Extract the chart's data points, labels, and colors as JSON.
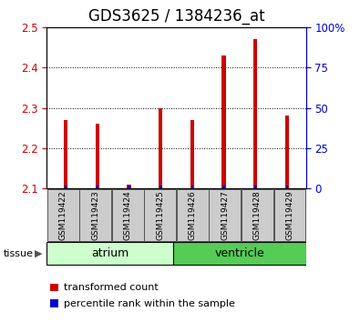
{
  "title": "GDS3625 / 1384236_at",
  "samples": [
    "GSM119422",
    "GSM119423",
    "GSM119424",
    "GSM119425",
    "GSM119426",
    "GSM119427",
    "GSM119428",
    "GSM119429"
  ],
  "red_values": [
    2.27,
    2.26,
    2.11,
    2.3,
    2.27,
    2.43,
    2.47,
    2.28
  ],
  "blue_pct": [
    2,
    2,
    2,
    2,
    2,
    2,
    2,
    2
  ],
  "baseline": 2.1,
  "ylim_left": [
    2.1,
    2.5
  ],
  "ylim_right": [
    0,
    100
  ],
  "yticks_left": [
    2.1,
    2.2,
    2.3,
    2.4,
    2.5
  ],
  "yticks_right": [
    0,
    25,
    50,
    75,
    100
  ],
  "ytick_labels_right": [
    "0",
    "25",
    "50",
    "75",
    "100%"
  ],
  "red_color": "#cc0000",
  "blue_color": "#0000cc",
  "atrium_color": "#ccffcc",
  "ventricle_color": "#55cc55",
  "sample_bg_color": "#cccccc",
  "atrium_label": "atrium",
  "ventricle_label": "ventricle",
  "tissue_label": "tissue",
  "legend_red": "transformed count",
  "legend_blue": "percentile rank within the sample",
  "bar_width": 0.12,
  "blue_bar_width": 0.08,
  "title_fontsize": 12,
  "tick_fontsize": 8.5,
  "label_fontsize": 8.5
}
